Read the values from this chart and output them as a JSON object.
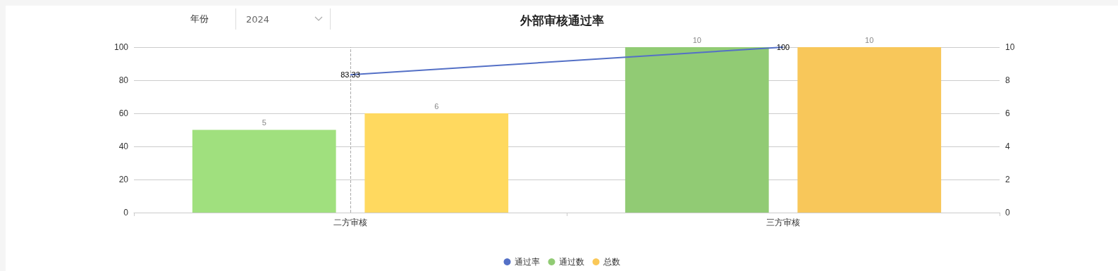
{
  "chart_data": {
    "type": "bar",
    "title": "外部审核通过率",
    "annotations": [
      "年份",
      "2024"
    ],
    "categories": [
      "二方审核",
      "三方审核"
    ],
    "series": [
      {
        "name": "通过率",
        "type": "line",
        "axis": "y",
        "color": "#5470c6",
        "values": [
          83.33,
          100
        ]
      },
      {
        "name": "通过数",
        "axis": "y2",
        "color": "#91cb74",
        "colors": [
          "#a0e07e",
          "#91cb74"
        ],
        "values": [
          5,
          10
        ]
      },
      {
        "name": "总数",
        "axis": "y2",
        "color": "#fac858",
        "colors": [
          "#ffd95f",
          "#f8c75a"
        ],
        "values": [
          6,
          10
        ]
      }
    ],
    "ylim": [
      0,
      100
    ],
    "yticks": [
      0,
      20,
      40,
      60,
      80,
      100
    ],
    "y2lim": [
      0,
      10
    ],
    "y2ticks": [
      0,
      2,
      4,
      6,
      8,
      10
    ],
    "grid": "y",
    "legend": "bottom",
    "data_labels": true,
    "marker": "none",
    "ref_lines": [
      {
        "axis": "x",
        "value": "二方审核",
        "label": null,
        "color": "#aaaaaa",
        "line_style": "dashed"
      }
    ]
  }
}
